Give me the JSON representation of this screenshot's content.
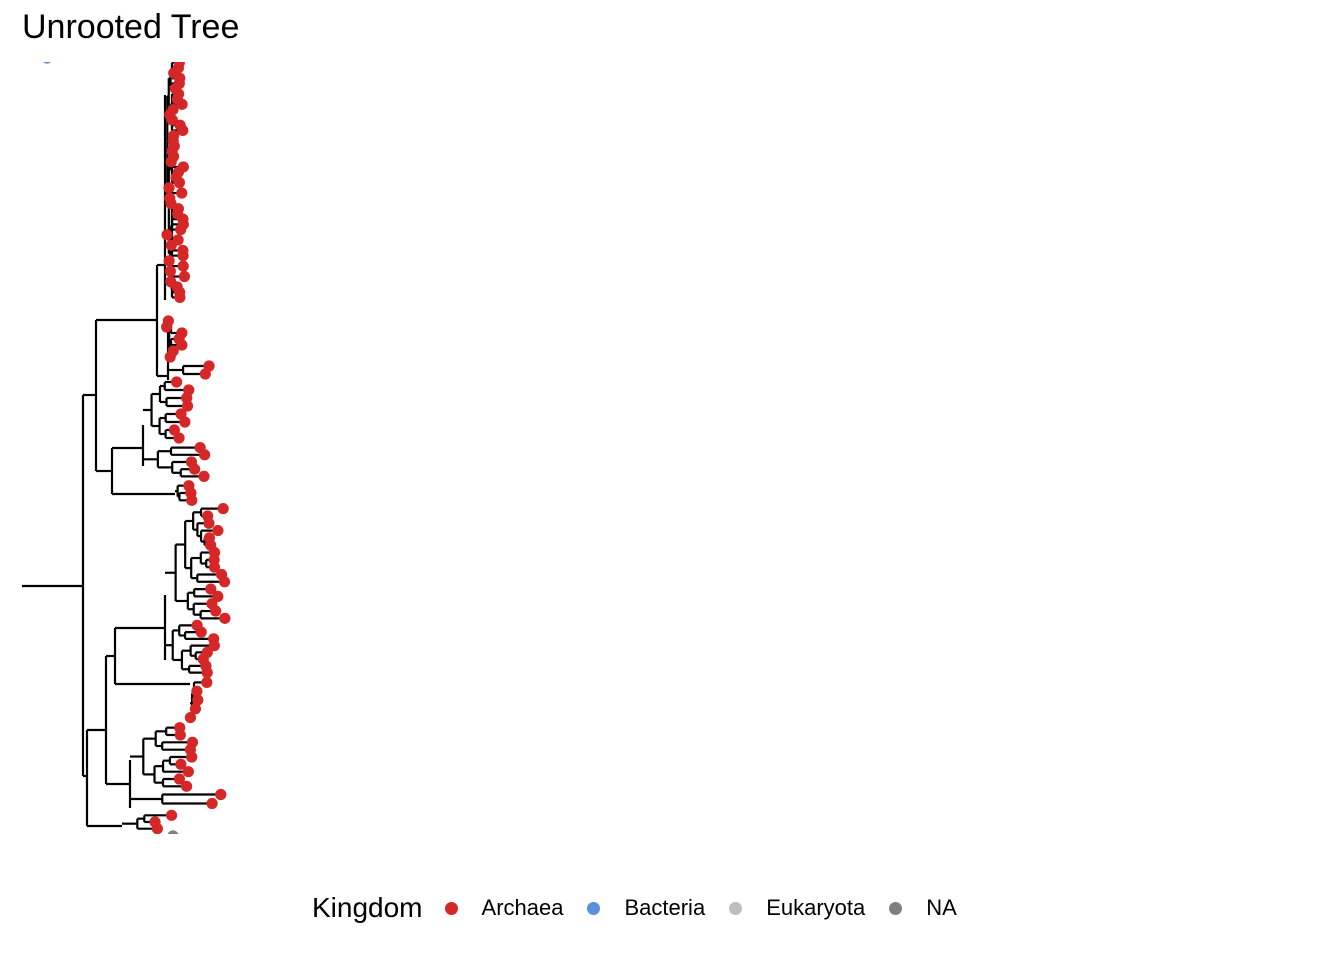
{
  "title": "Unrooted Tree",
  "legend": {
    "title": "Kingdom",
    "items": [
      {
        "label": "Archaea",
        "color": "#d62728"
      },
      {
        "label": "Bacteria",
        "color": "#5b8fde"
      },
      {
        "label": "Eukaryota",
        "color": "#bdbdbd"
      },
      {
        "label": "NA",
        "color": "#7f7f7f"
      }
    ]
  },
  "tree": {
    "edge_color": "#000000",
    "tip_kingdoms": {
      "Bacteria": 1,
      "Archaea": 146,
      "NA": 1
    }
  }
}
